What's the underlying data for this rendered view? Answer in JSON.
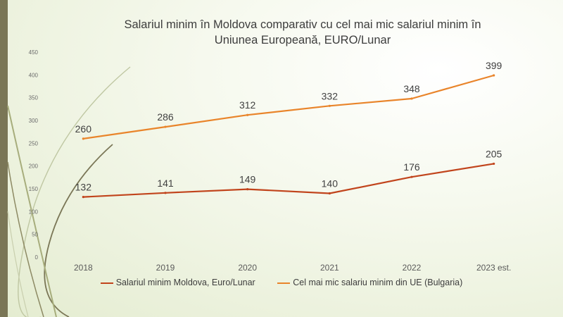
{
  "chart_data": {
    "type": "line",
    "title_line1": "Salariul minim în Moldova comparativ cu cel mai mic salariul minim în",
    "title_line2": "Uniunea Europeană, EURO/Lunar",
    "categories": [
      "2018",
      "2019",
      "2020",
      "2021",
      "2022",
      "2023 est."
    ],
    "y_ticks": [
      "0",
      "50",
      "100",
      "150",
      "200",
      "250",
      "300",
      "350",
      "400",
      "450"
    ],
    "ylim": [
      0,
      450
    ],
    "series": [
      {
        "name": "Salariul minim Moldova, Euro/Lunar",
        "values": [
          132,
          141,
          149,
          140,
          176,
          205
        ],
        "color": "#c1441c"
      },
      {
        "name": "Cel mai mic salariu minim din UE (Bulgaria)",
        "values": [
          260,
          286,
          312,
          332,
          348,
          399
        ],
        "color": "#e9842a"
      }
    ],
    "legend_position": "bottom",
    "grid": false
  }
}
